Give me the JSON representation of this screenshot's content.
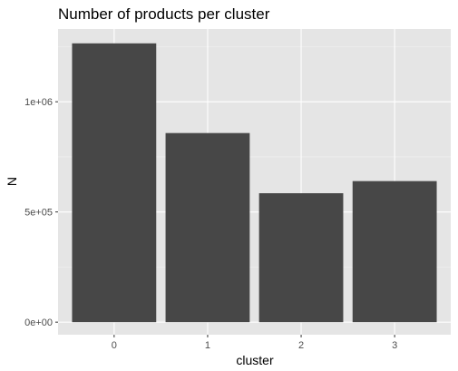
{
  "chart_data": {
    "type": "bar",
    "title": "Number of products per cluster",
    "xlabel": "cluster",
    "ylabel": "N",
    "categories": [
      "0",
      "1",
      "2",
      "3"
    ],
    "values": [
      1265000,
      858000,
      585000,
      640000
    ],
    "ylim": [
      -57000,
      1330000
    ],
    "yticks": [
      0,
      500000,
      1000000
    ],
    "ytick_labels": [
      "0e+00",
      "5e+05",
      "1e+06"
    ],
    "grid": true,
    "legend": "none",
    "colors": {
      "panel": "#e5e5e5",
      "grid_major": "#ffffff",
      "grid_minor": "#f0f0f0",
      "bar": "#474747",
      "tick_text": "#4d4d4d",
      "text": "#000000"
    }
  }
}
